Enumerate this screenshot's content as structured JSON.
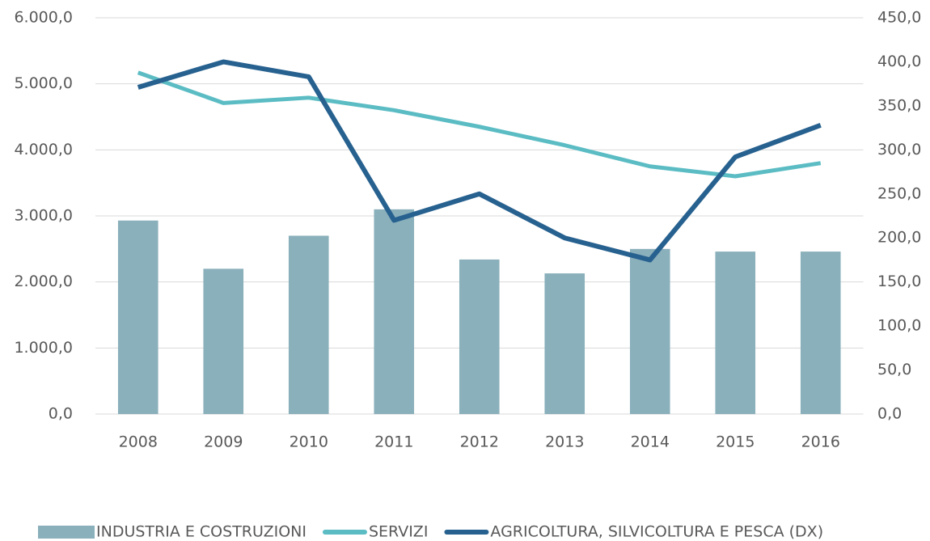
{
  "chart_data": {
    "type": "combo",
    "categories": [
      "2008",
      "2009",
      "2010",
      "2011",
      "2012",
      "2013",
      "2014",
      "2015",
      "2016"
    ],
    "series": [
      {
        "name": "INDUSTRIA E COSTRUZIONI",
        "type": "bar",
        "color": "#8ab0bb",
        "values": [
          2930,
          2200,
          2700,
          3100,
          2340,
          2130,
          2500,
          2460,
          2460
        ]
      },
      {
        "name": "SERVIZI",
        "type": "line",
        "color": "#5bbcc4",
        "values": [
          5170,
          4710,
          4790,
          4600,
          4350,
          4070,
          3750,
          3600,
          3800
        ]
      },
      {
        "name": "AGRICOLTURA, SILVICOLTURA E PESCA (DX)",
        "type": "line",
        "axis": "y2",
        "color": "#27618f",
        "values": [
          371,
          400,
          383,
          220,
          250,
          200,
          175,
          292,
          328
        ]
      }
    ],
    "ylim": [
      0,
      6000
    ],
    "yticks": [
      {
        "value": 0,
        "label": "0,0"
      },
      {
        "value": 1000,
        "label": "1.000,0"
      },
      {
        "value": 2000,
        "label": "2.000,0"
      },
      {
        "value": 3000,
        "label": "3.000,0"
      },
      {
        "value": 4000,
        "label": "4.000,0"
      },
      {
        "value": 5000,
        "label": "5.000,0"
      },
      {
        "value": 6000,
        "label": "6.000,0"
      }
    ],
    "y2lim": [
      0,
      450
    ],
    "y2ticks": [
      {
        "value": 0,
        "label": "0,0"
      },
      {
        "value": 50,
        "label": "50,0"
      },
      {
        "value": 100,
        "label": "100,0"
      },
      {
        "value": 150,
        "label": "150,0"
      },
      {
        "value": 200,
        "label": "200,0"
      },
      {
        "value": 250,
        "label": "250,0"
      },
      {
        "value": 300,
        "label": "300,0"
      },
      {
        "value": 350,
        "label": "350,0"
      },
      {
        "value": 400,
        "label": "400,0"
      },
      {
        "value": 450,
        "label": "450,0"
      }
    ],
    "grid": true,
    "legend": "bottom"
  }
}
